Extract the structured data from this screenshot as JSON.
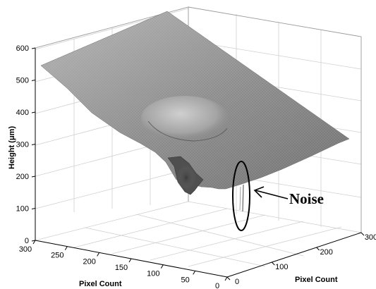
{
  "chart_data": {
    "type": "surface",
    "x_axis": {
      "label": "Pixel Count",
      "ticks": [
        "0",
        "50",
        "100",
        "150",
        "200",
        "250",
        "300"
      ],
      "range": [
        0,
        300
      ]
    },
    "y_axis": {
      "label": "Pixel Count",
      "ticks": [
        "0",
        "100",
        "200",
        "300"
      ],
      "range": [
        0,
        300
      ]
    },
    "z_axis": {
      "label": "Height (μm)",
      "ticks": [
        "0",
        "100",
        "200",
        "300",
        "400",
        "500",
        "600"
      ],
      "range": [
        0,
        600
      ]
    },
    "surface": {
      "description_values": {
        "plane_height_at_x300_y0": 540,
        "plane_height_at_x0_y0": 250,
        "plane_height_at_x0_y300": 320,
        "bump_height_peak": 350,
        "pit_depth_min": 140,
        "noise_spike_min": 0
      }
    },
    "annotation": {
      "text": "Noise"
    },
    "grid": true
  }
}
